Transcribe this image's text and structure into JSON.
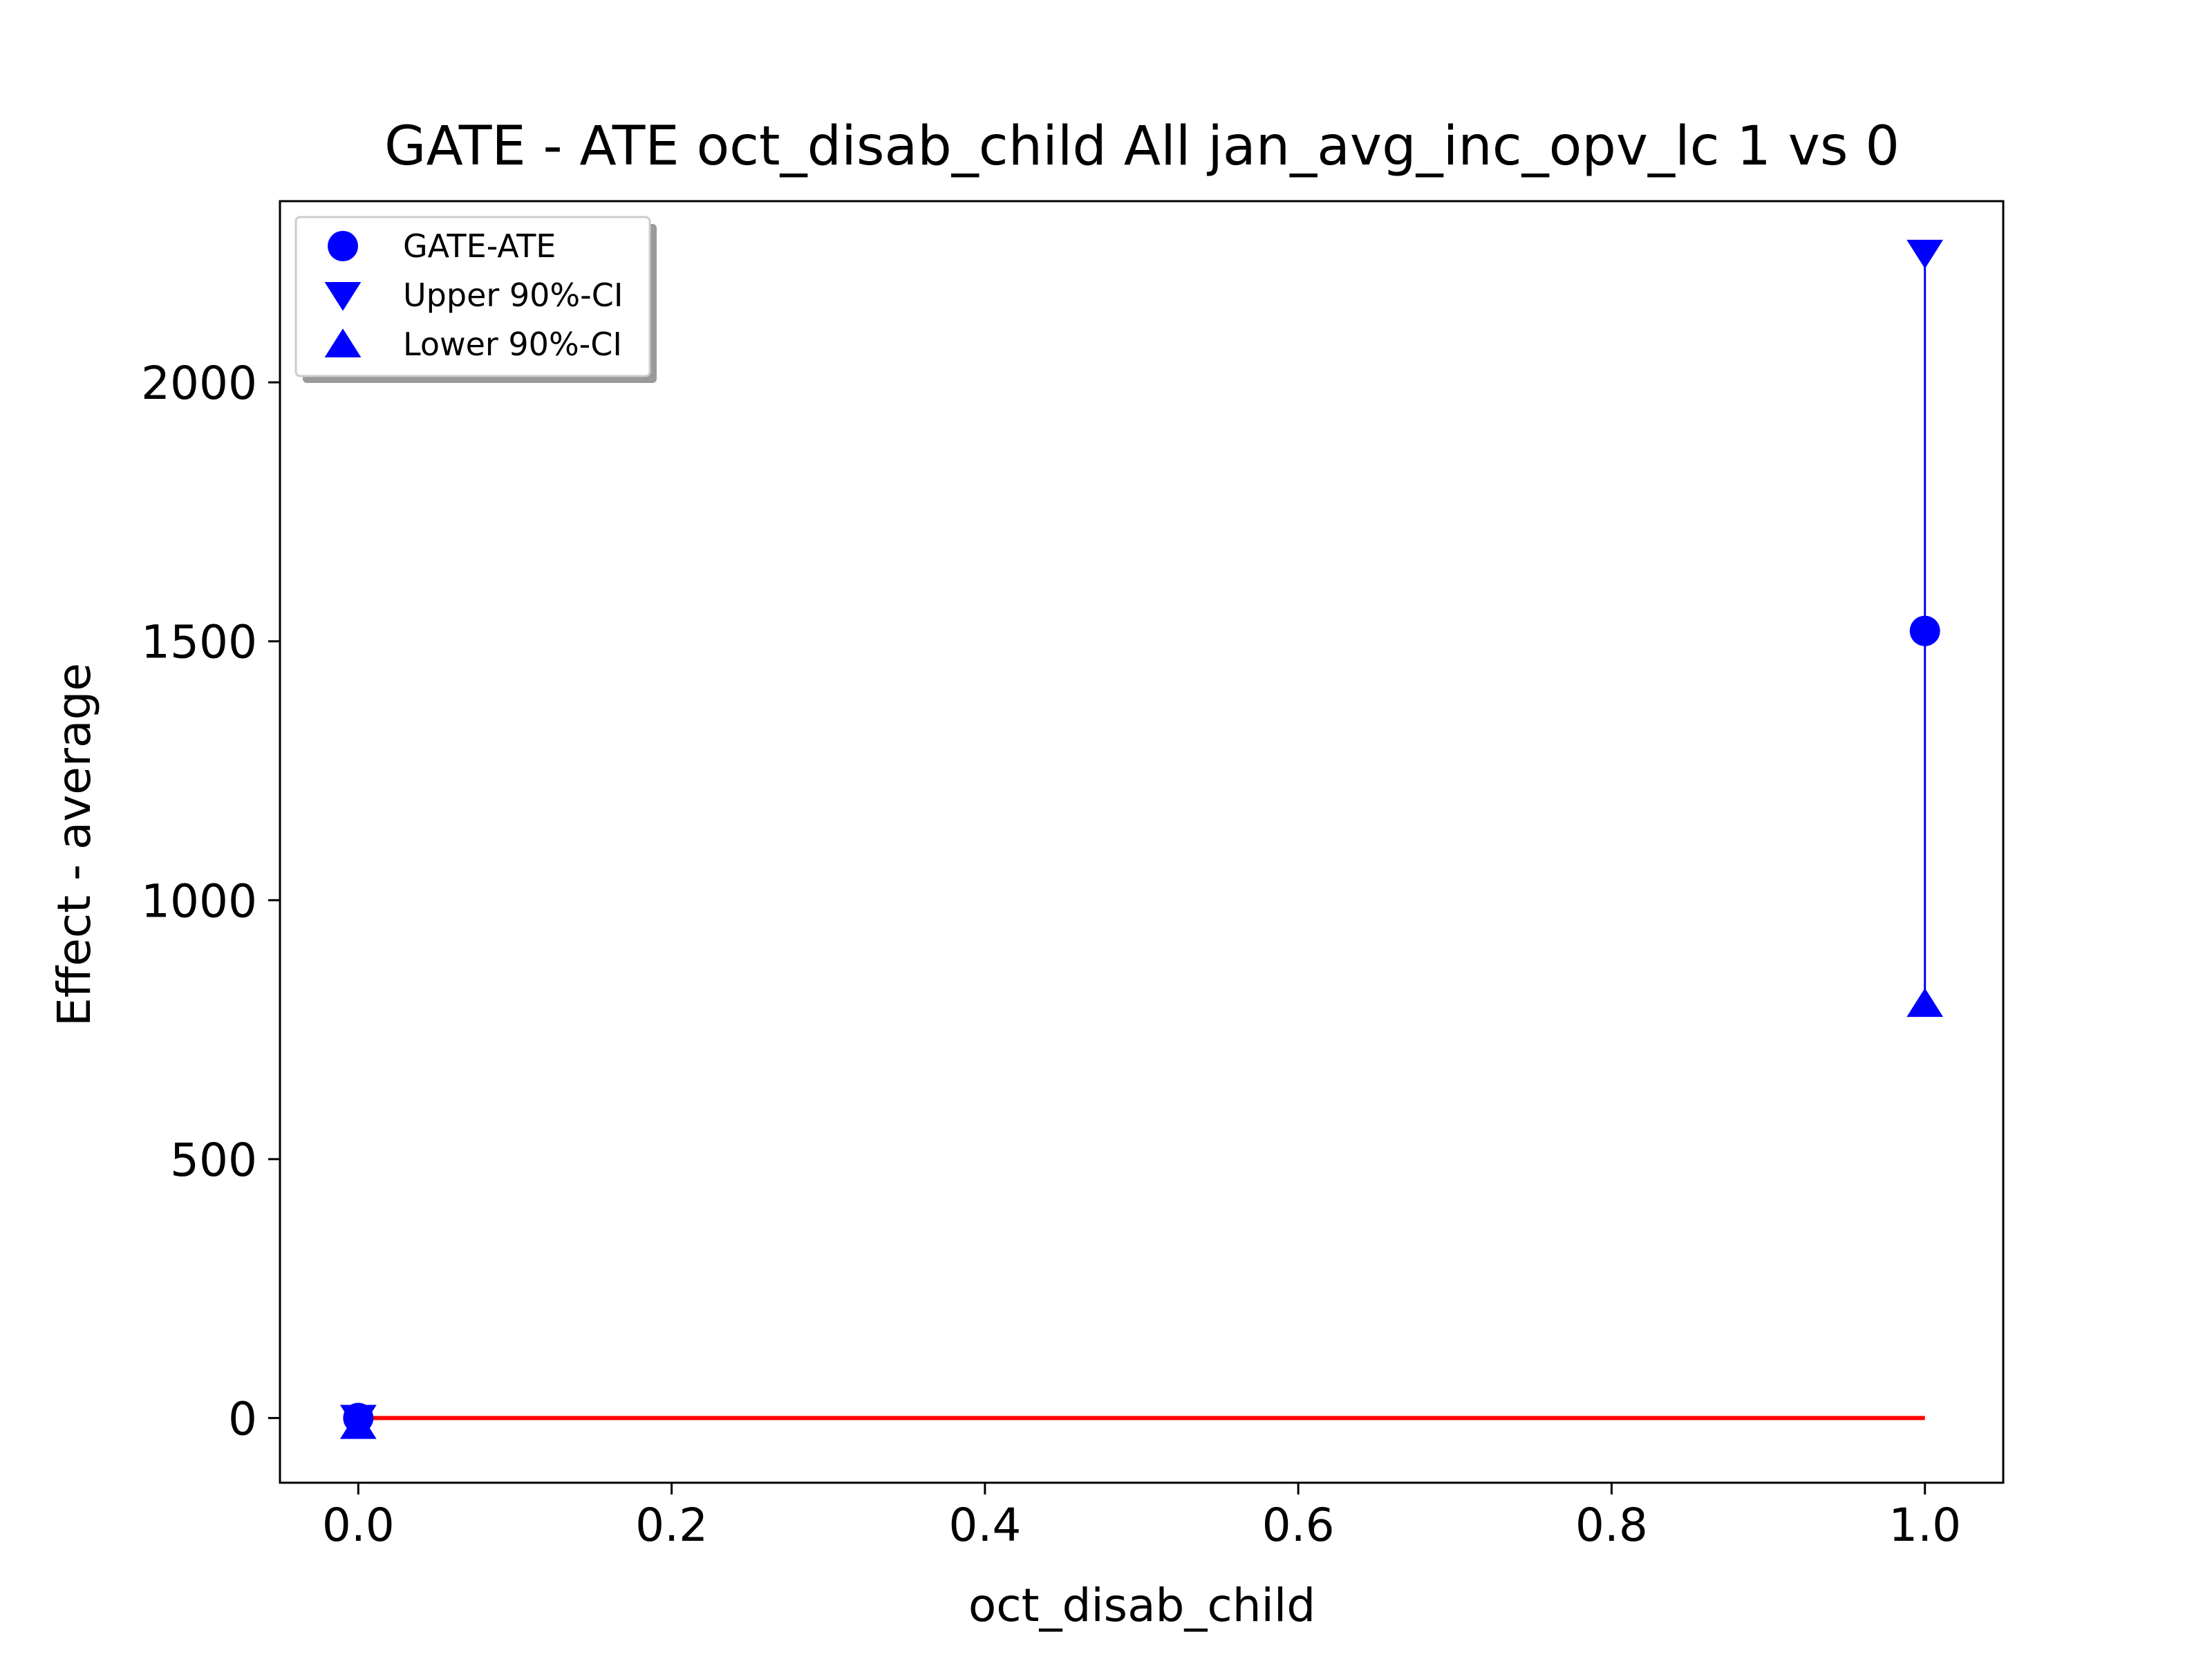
{
  "chart_data": {
    "type": "scatter",
    "title": "GATE - ATE oct_disab_child All jan_avg_inc_opv_lc  1 vs 0",
    "xlabel": "oct_disab_child",
    "ylabel": "Effect - average",
    "xlim": [
      -0.05,
      1.05
    ],
    "ylim": [
      -125,
      2350
    ],
    "xticks": [
      0.0,
      0.2,
      0.4,
      0.6,
      0.8,
      1.0
    ],
    "xtick_labels": [
      "0.0",
      "0.2",
      "0.4",
      "0.6",
      "0.8",
      "1.0"
    ],
    "yticks": [
      0,
      500,
      1000,
      1500,
      2000
    ],
    "ytick_labels": [
      "0",
      "500",
      "1000",
      "1500",
      "2000"
    ],
    "x": [
      0.0,
      1.0
    ],
    "series": [
      {
        "name": "GATE-ATE",
        "marker": "circle",
        "color": "#0000ff",
        "values": [
          0,
          1520
        ]
      },
      {
        "name": "Upper 90%-CI",
        "marker": "triangle-down",
        "color": "#0000ff",
        "values": [
          0,
          2250
        ]
      },
      {
        "name": "Lower 90%-CI",
        "marker": "triangle-up",
        "color": "#0000ff",
        "values": [
          -15,
          800
        ]
      }
    ],
    "reference_line": {
      "y": 0,
      "x_range": [
        0.0,
        1.0
      ],
      "color": "#ff0000"
    },
    "legend": {
      "placement": "upper-left",
      "shadow": true
    },
    "grid": false
  }
}
